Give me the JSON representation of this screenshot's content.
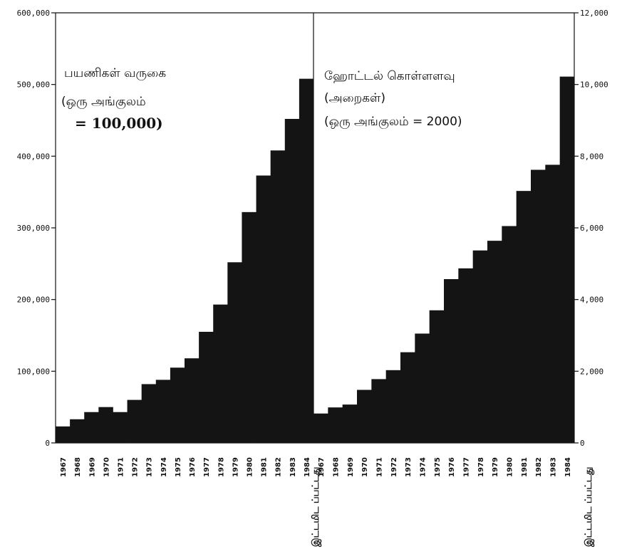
{
  "chart_data": [
    {
      "type": "bar",
      "panel": "left",
      "title_lines": [
        "பயணிகள் வருகை",
        "(ஒரு அங்குலம்",
        "= 100,000)"
      ],
      "y_axis_side": "left",
      "ylim": [
        0,
        600000
      ],
      "yticks": [
        {
          "value": 0,
          "label": "0"
        },
        {
          "value": 100000,
          "label": "100,000"
        },
        {
          "value": 200000,
          "label": "200,000"
        },
        {
          "value": 300000,
          "label": "300,000"
        },
        {
          "value": 400000,
          "label": "400,000"
        },
        {
          "value": 500000,
          "label": "500,000"
        },
        {
          "value": 600000,
          "label": "600,000"
        }
      ],
      "categories": [
        "1967",
        "1968",
        "1969",
        "1970",
        "1971",
        "1972",
        "1973",
        "1974",
        "1975",
        "1976",
        "1977",
        "1978",
        "1979",
        "1980",
        "1981",
        "1982",
        "1983",
        "1984"
      ],
      "values": [
        23000,
        33000,
        43000,
        50000,
        43000,
        60000,
        82000,
        88000,
        105000,
        118000,
        155000,
        193000,
        252000,
        322000,
        373000,
        408000,
        452000,
        508000
      ],
      "extra_label": "இட்டமிட ப்பட்டது",
      "grid": false
    },
    {
      "type": "bar",
      "panel": "right",
      "title_lines": [
        "ஹோட்டல் கொள்ளளவு",
        "(அறைகள்)",
        "(ஒரு அங்குலம் = 2000)"
      ],
      "y_axis_side": "right",
      "ylim": [
        0,
        12000
      ],
      "yticks": [
        {
          "value": 0,
          "label": "0"
        },
        {
          "value": 2000,
          "label": "2,000"
        },
        {
          "value": 4000,
          "label": "4,000"
        },
        {
          "value": 6000,
          "label": "6,000"
        },
        {
          "value": 8000,
          "label": "8,000"
        },
        {
          "value": 10000,
          "label": "10,000"
        },
        {
          "value": 12000,
          "label": "12,000"
        }
      ],
      "categories": [
        "1967",
        "1968",
        "1969",
        "1970",
        "1971",
        "1972",
        "1973",
        "1974",
        "1975",
        "1976",
        "1977",
        "1978",
        "1979",
        "1980",
        "1981",
        "1982",
        "1983",
        "1984"
      ],
      "values": [
        820,
        990,
        1070,
        1480,
        1780,
        2030,
        2530,
        3050,
        3700,
        4570,
        4870,
        5370,
        5640,
        6050,
        7030,
        7620,
        7760,
        10220
      ],
      "extra_label": "இட்டமிட ப்பட்டது",
      "grid": false
    }
  ]
}
